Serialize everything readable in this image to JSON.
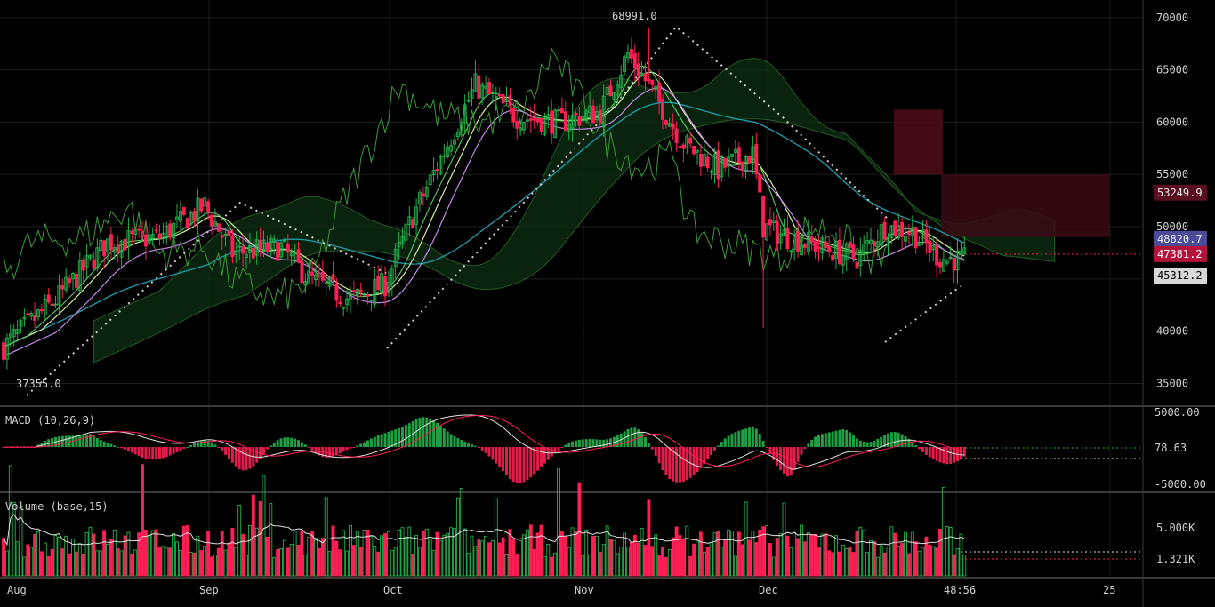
{
  "macd_pane": {
    "label": "MACD (10,26,9)",
    "ticks": [
      "5000.00",
      "78.63",
      "-5000.00"
    ]
  },
  "volume_pane": {
    "label": "Volume (base,15)",
    "ticks": [
      "5.000K",
      "1.321K"
    ]
  },
  "price_annotations": {
    "high": "68991.0",
    "low": "37355.0"
  },
  "price_tags": [
    {
      "text": "53249.9",
      "value": 53249.9,
      "bg": "#5a0f1f",
      "fg": "#e8e8e8"
    },
    {
      "text": "48820.7",
      "value": 48820.7,
      "bg": "#4b4b9a",
      "fg": "#e8e8e8"
    },
    {
      "text": "47381.2",
      "value": 47381.2,
      "bg": "#b4123b",
      "fg": "#ffffff"
    },
    {
      "text": "45312.2",
      "value": 45312.2,
      "bg": "#d8d8d8",
      "fg": "#000000"
    }
  ],
  "x_labels": [
    "Aug",
    "Sep",
    "Oct",
    "Nov",
    "Dec",
    "48:56",
    "25"
  ],
  "colors": {
    "up": "#22b14c",
    "down": "#ff1e55",
    "ma_teal": "#1e9fae",
    "ma_light": "#d7f3a0",
    "ma_green": "#58d05c",
    "ma_violet": "#c48ce8",
    "lagging": "#3d9b3a"
  },
  "chart_data": {
    "type": "candlestick",
    "y_ticks": [
      70000,
      65000,
      60000,
      55000,
      50000,
      45000,
      40000,
      35000
    ],
    "y_tick_labels": [
      "70000",
      "65000",
      "60000",
      "55000",
      "50000",
      "45000",
      "40000",
      "35000"
    ],
    "ylim": [
      33000,
      71000
    ],
    "x_labels": [
      "Aug",
      "Sep",
      "Oct",
      "Nov",
      "Dec",
      "48:56",
      "25"
    ],
    "high_annotation": 68991.0,
    "low_annotation": 37355.0,
    "anchors": [
      [
        0,
        38500
      ],
      [
        15,
        43000
      ],
      [
        30,
        48500
      ],
      [
        45,
        49000
      ],
      [
        58,
        52000
      ],
      [
        66,
        47500
      ],
      [
        80,
        48000
      ],
      [
        88,
        45000
      ],
      [
        100,
        43000
      ],
      [
        110,
        44500
      ],
      [
        118,
        51000
      ],
      [
        126,
        56500
      ],
      [
        136,
        63500
      ],
      [
        148,
        60500
      ],
      [
        160,
        60000
      ],
      [
        172,
        61000
      ],
      [
        180,
        66500
      ],
      [
        186,
        63500
      ],
      [
        196,
        58000
      ],
      [
        206,
        55500
      ],
      [
        216,
        57000
      ],
      [
        219,
        50000
      ],
      [
        226,
        49000
      ],
      [
        236,
        48000
      ],
      [
        246,
        47000
      ],
      [
        254,
        50000
      ],
      [
        262,
        49500
      ],
      [
        270,
        47000
      ],
      [
        277,
        46800
      ]
    ],
    "n_candles": 278
  }
}
